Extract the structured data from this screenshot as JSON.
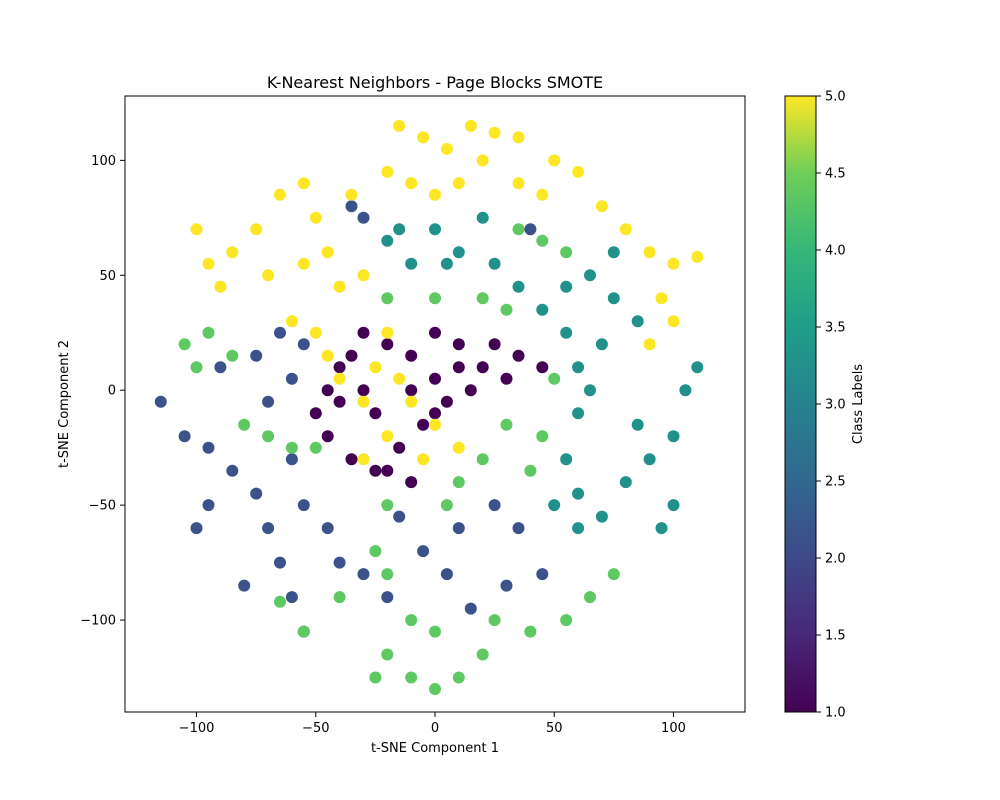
{
  "chart_data": {
    "type": "scatter",
    "title": "K-Nearest Neighbors - Page Blocks SMOTE",
    "xlabel": "t-SNE Component 1",
    "ylabel": "t-SNE Component 2",
    "xlim": [
      -130,
      130
    ],
    "ylim": [
      -140,
      128
    ],
    "xticks": [
      -100,
      -50,
      0,
      50,
      100
    ],
    "yticks": [
      -100,
      -50,
      0,
      50,
      100
    ],
    "grid": false,
    "colormap": "viridis",
    "colorbar": {
      "label": "Class Labels",
      "range": [
        1.0,
        5.0
      ],
      "ticks": [
        "1.0",
        "1.5",
        "2.0",
        "2.5",
        "3.0",
        "3.5",
        "4.0",
        "4.5",
        "5.0"
      ]
    },
    "class_colors": {
      "1": "#440154",
      "2": "#3b528b",
      "3": "#21918c",
      "4": "#5ec962",
      "5": "#fde725"
    },
    "clusters": [
      {
        "class": 1,
        "points": [
          [
            -40,
            10
          ],
          [
            -30,
            0
          ],
          [
            -25,
            -10
          ],
          [
            -20,
            20
          ],
          [
            -10,
            15
          ],
          [
            0,
            25
          ],
          [
            10,
            20
          ],
          [
            20,
            10
          ],
          [
            15,
            0
          ],
          [
            5,
            -5
          ],
          [
            -5,
            -15
          ],
          [
            -15,
            -25
          ],
          [
            -25,
            -35
          ],
          [
            -35,
            -30
          ],
          [
            -45,
            -20
          ],
          [
            -40,
            -5
          ],
          [
            0,
            5
          ],
          [
            -10,
            0
          ],
          [
            10,
            10
          ],
          [
            25,
            20
          ],
          [
            35,
            15
          ],
          [
            45,
            10
          ],
          [
            -20,
            -35
          ],
          [
            -10,
            -40
          ],
          [
            -30,
            25
          ],
          [
            -35,
            15
          ],
          [
            -45,
            0
          ],
          [
            -50,
            -10
          ],
          [
            0,
            -10
          ],
          [
            30,
            5
          ]
        ]
      },
      {
        "class": 2,
        "points": [
          [
            -115,
            -5
          ],
          [
            -105,
            -20
          ],
          [
            -95,
            -25
          ],
          [
            -85,
            -35
          ],
          [
            -75,
            -45
          ],
          [
            -70,
            -60
          ],
          [
            -65,
            -75
          ],
          [
            -80,
            -85
          ],
          [
            -95,
            -50
          ],
          [
            -100,
            -60
          ],
          [
            -60,
            -30
          ],
          [
            -55,
            -50
          ],
          [
            -45,
            -60
          ],
          [
            -40,
            -75
          ],
          [
            -30,
            -80
          ],
          [
            -20,
            -90
          ],
          [
            -60,
            -90
          ],
          [
            -55,
            -105
          ],
          [
            -90,
            10
          ],
          [
            -75,
            15
          ],
          [
            -65,
            25
          ],
          [
            -55,
            20
          ],
          [
            -60,
            5
          ],
          [
            -70,
            -5
          ],
          [
            -15,
            -55
          ],
          [
            -5,
            -70
          ],
          [
            5,
            -80
          ],
          [
            15,
            -95
          ],
          [
            30,
            -85
          ],
          [
            45,
            -80
          ],
          [
            35,
            -60
          ],
          [
            25,
            -50
          ],
          [
            40,
            70
          ],
          [
            -30,
            75
          ],
          [
            -35,
            80
          ],
          [
            10,
            -60
          ]
        ]
      },
      {
        "class": 3,
        "points": [
          [
            -20,
            65
          ],
          [
            -10,
            55
          ],
          [
            0,
            70
          ],
          [
            10,
            60
          ],
          [
            20,
            75
          ],
          [
            25,
            55
          ],
          [
            35,
            45
          ],
          [
            45,
            35
          ],
          [
            55,
            25
          ],
          [
            60,
            10
          ],
          [
            65,
            0
          ],
          [
            70,
            20
          ],
          [
            75,
            40
          ],
          [
            65,
            50
          ],
          [
            55,
            45
          ],
          [
            75,
            60
          ],
          [
            85,
            30
          ],
          [
            60,
            -10
          ],
          [
            55,
            -30
          ],
          [
            60,
            -45
          ],
          [
            70,
            -55
          ],
          [
            80,
            -40
          ],
          [
            90,
            -30
          ],
          [
            100,
            -20
          ],
          [
            105,
            0
          ],
          [
            110,
            10
          ],
          [
            100,
            -50
          ],
          [
            95,
            -60
          ],
          [
            85,
            -15
          ],
          [
            50,
            -50
          ],
          [
            60,
            -60
          ],
          [
            5,
            55
          ],
          [
            -15,
            70
          ]
        ]
      },
      {
        "class": 4,
        "points": [
          [
            -105,
            20
          ],
          [
            -100,
            10
          ],
          [
            -95,
            25
          ],
          [
            -85,
            15
          ],
          [
            -80,
            -15
          ],
          [
            -70,
            -20
          ],
          [
            -60,
            -25
          ],
          [
            -50,
            -25
          ],
          [
            -20,
            40
          ],
          [
            0,
            40
          ],
          [
            20,
            40
          ],
          [
            30,
            35
          ],
          [
            35,
            70
          ],
          [
            45,
            65
          ],
          [
            55,
            60
          ],
          [
            50,
            5
          ],
          [
            45,
            -20
          ],
          [
            40,
            -35
          ],
          [
            30,
            -15
          ],
          [
            20,
            -30
          ],
          [
            10,
            -40
          ],
          [
            5,
            -50
          ],
          [
            -20,
            -50
          ],
          [
            -25,
            -70
          ],
          [
            -20,
            -80
          ],
          [
            -10,
            -100
          ],
          [
            0,
            -105
          ],
          [
            -20,
            -115
          ],
          [
            -25,
            -125
          ],
          [
            -10,
            -125
          ],
          [
            0,
            -130
          ],
          [
            10,
            -125
          ],
          [
            20,
            -115
          ],
          [
            25,
            -100
          ],
          [
            40,
            -105
          ],
          [
            55,
            -100
          ],
          [
            65,
            -90
          ],
          [
            75,
            -80
          ],
          [
            -55,
            -105
          ],
          [
            -65,
            -92
          ],
          [
            -40,
            -90
          ]
        ]
      },
      {
        "class": 5,
        "points": [
          [
            -100,
            70
          ],
          [
            -95,
            55
          ],
          [
            -90,
            45
          ],
          [
            -85,
            60
          ],
          [
            -75,
            70
          ],
          [
            -70,
            50
          ],
          [
            -65,
            85
          ],
          [
            -55,
            90
          ],
          [
            -50,
            75
          ],
          [
            -45,
            60
          ],
          [
            -40,
            45
          ],
          [
            -35,
            85
          ],
          [
            -30,
            50
          ],
          [
            -55,
            55
          ],
          [
            -60,
            30
          ],
          [
            -50,
            25
          ],
          [
            -45,
            15
          ],
          [
            -40,
            5
          ],
          [
            -30,
            -5
          ],
          [
            -25,
            10
          ],
          [
            -20,
            25
          ],
          [
            -15,
            5
          ],
          [
            -10,
            -5
          ],
          [
            -20,
            -20
          ],
          [
            -30,
            -30
          ],
          [
            -5,
            -30
          ],
          [
            -15,
            115
          ],
          [
            -5,
            110
          ],
          [
            5,
            105
          ],
          [
            15,
            115
          ],
          [
            25,
            112
          ],
          [
            35,
            110
          ],
          [
            50,
            100
          ],
          [
            60,
            95
          ],
          [
            70,
            80
          ],
          [
            80,
            70
          ],
          [
            90,
            60
          ],
          [
            100,
            55
          ],
          [
            110,
            58
          ],
          [
            -10,
            90
          ],
          [
            0,
            85
          ],
          [
            10,
            90
          ],
          [
            20,
            100
          ],
          [
            35,
            90
          ],
          [
            45,
            85
          ],
          [
            95,
            40
          ],
          [
            100,
            30
          ],
          [
            90,
            20
          ],
          [
            10,
            -25
          ],
          [
            0,
            -15
          ],
          [
            -20,
            95
          ]
        ]
      }
    ]
  }
}
